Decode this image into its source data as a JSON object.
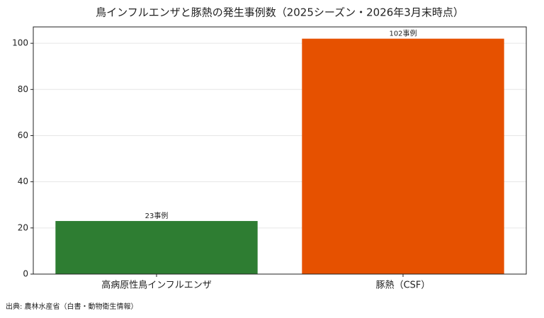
{
  "chart_data": {
    "type": "bar",
    "title": "鳥インフルエンザと豚熱の発生事例数（2025シーズン・2026年3月末時点）",
    "categories": [
      "高病原性鳥インフルエンザ",
      "豚熱（CSF）"
    ],
    "values": [
      23,
      102
    ],
    "value_labels": [
      "23事例",
      "102事例"
    ],
    "colors": [
      "#2e7d32",
      "#e65100"
    ],
    "ylim": [
      0,
      107.1
    ],
    "yticks": [
      0,
      20,
      40,
      60,
      80,
      100
    ],
    "grid": true,
    "source": "出典: 農林水産省（白書・動物衛生情報）"
  }
}
